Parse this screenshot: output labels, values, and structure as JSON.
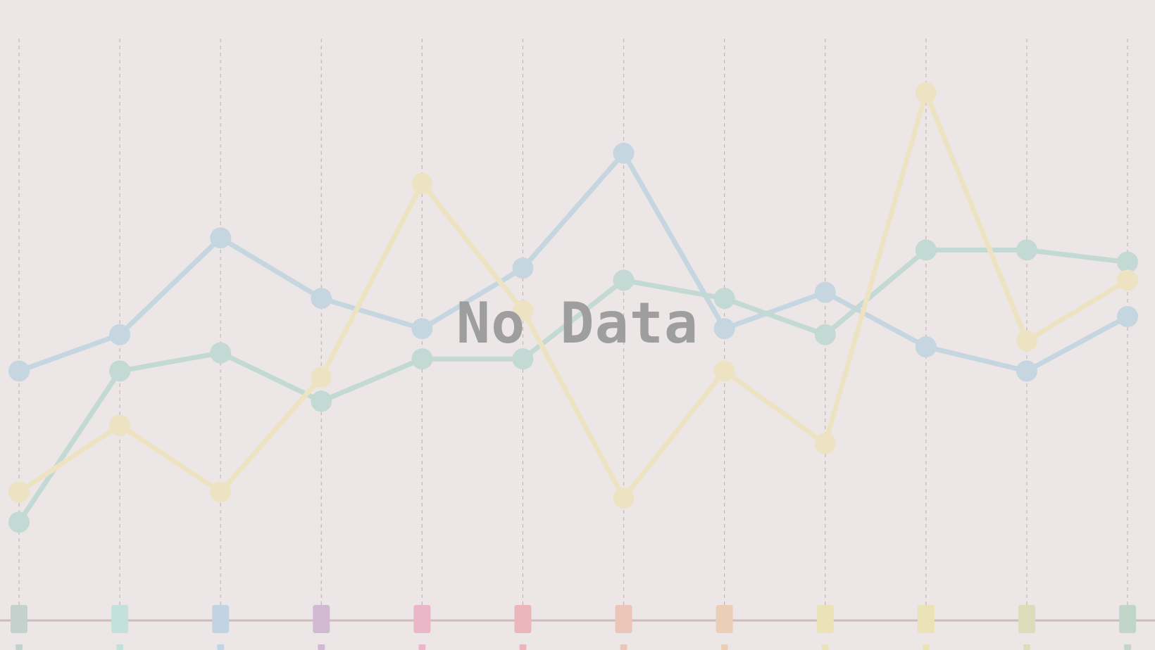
{
  "empty_state": {
    "message": "No Data"
  },
  "colors": {
    "background": "#ede6e6",
    "gridline": "#c9b6b6",
    "baseline": "#cdbcbc",
    "message": "#9e9e9e",
    "category_chips": [
      "#c4d1cc",
      "#c3e0dd",
      "#c2d4e4",
      "#d1b9d2",
      "#ebb6c8",
      "#ebb6ba",
      "#ebc5b8",
      "#ebceb8",
      "#ebe2b8",
      "#ebe2b8",
      "#dcdcba",
      "#c1d6c8"
    ]
  },
  "chart_data": {
    "type": "line",
    "title": "",
    "xlabel": "",
    "ylabel": "",
    "x": [
      1,
      2,
      3,
      4,
      5,
      6,
      7,
      8,
      9,
      10,
      11,
      12
    ],
    "ylim": [
      0,
      100
    ],
    "grid": "vertical-dashed",
    "series": [
      {
        "color": "#c6d6e0",
        "values": [
          41,
          47,
          63,
          53,
          48,
          58,
          77,
          48,
          54,
          45,
          41,
          50
        ]
      },
      {
        "color": "#c3d9d3",
        "values": [
          16,
          41,
          44,
          36,
          43,
          43,
          56,
          53,
          47,
          61,
          61,
          59
        ]
      },
      {
        "color": "#ede3c2",
        "values": [
          21,
          32,
          21,
          40,
          72,
          51,
          20,
          41,
          29,
          87,
          46,
          56
        ]
      }
    ]
  }
}
